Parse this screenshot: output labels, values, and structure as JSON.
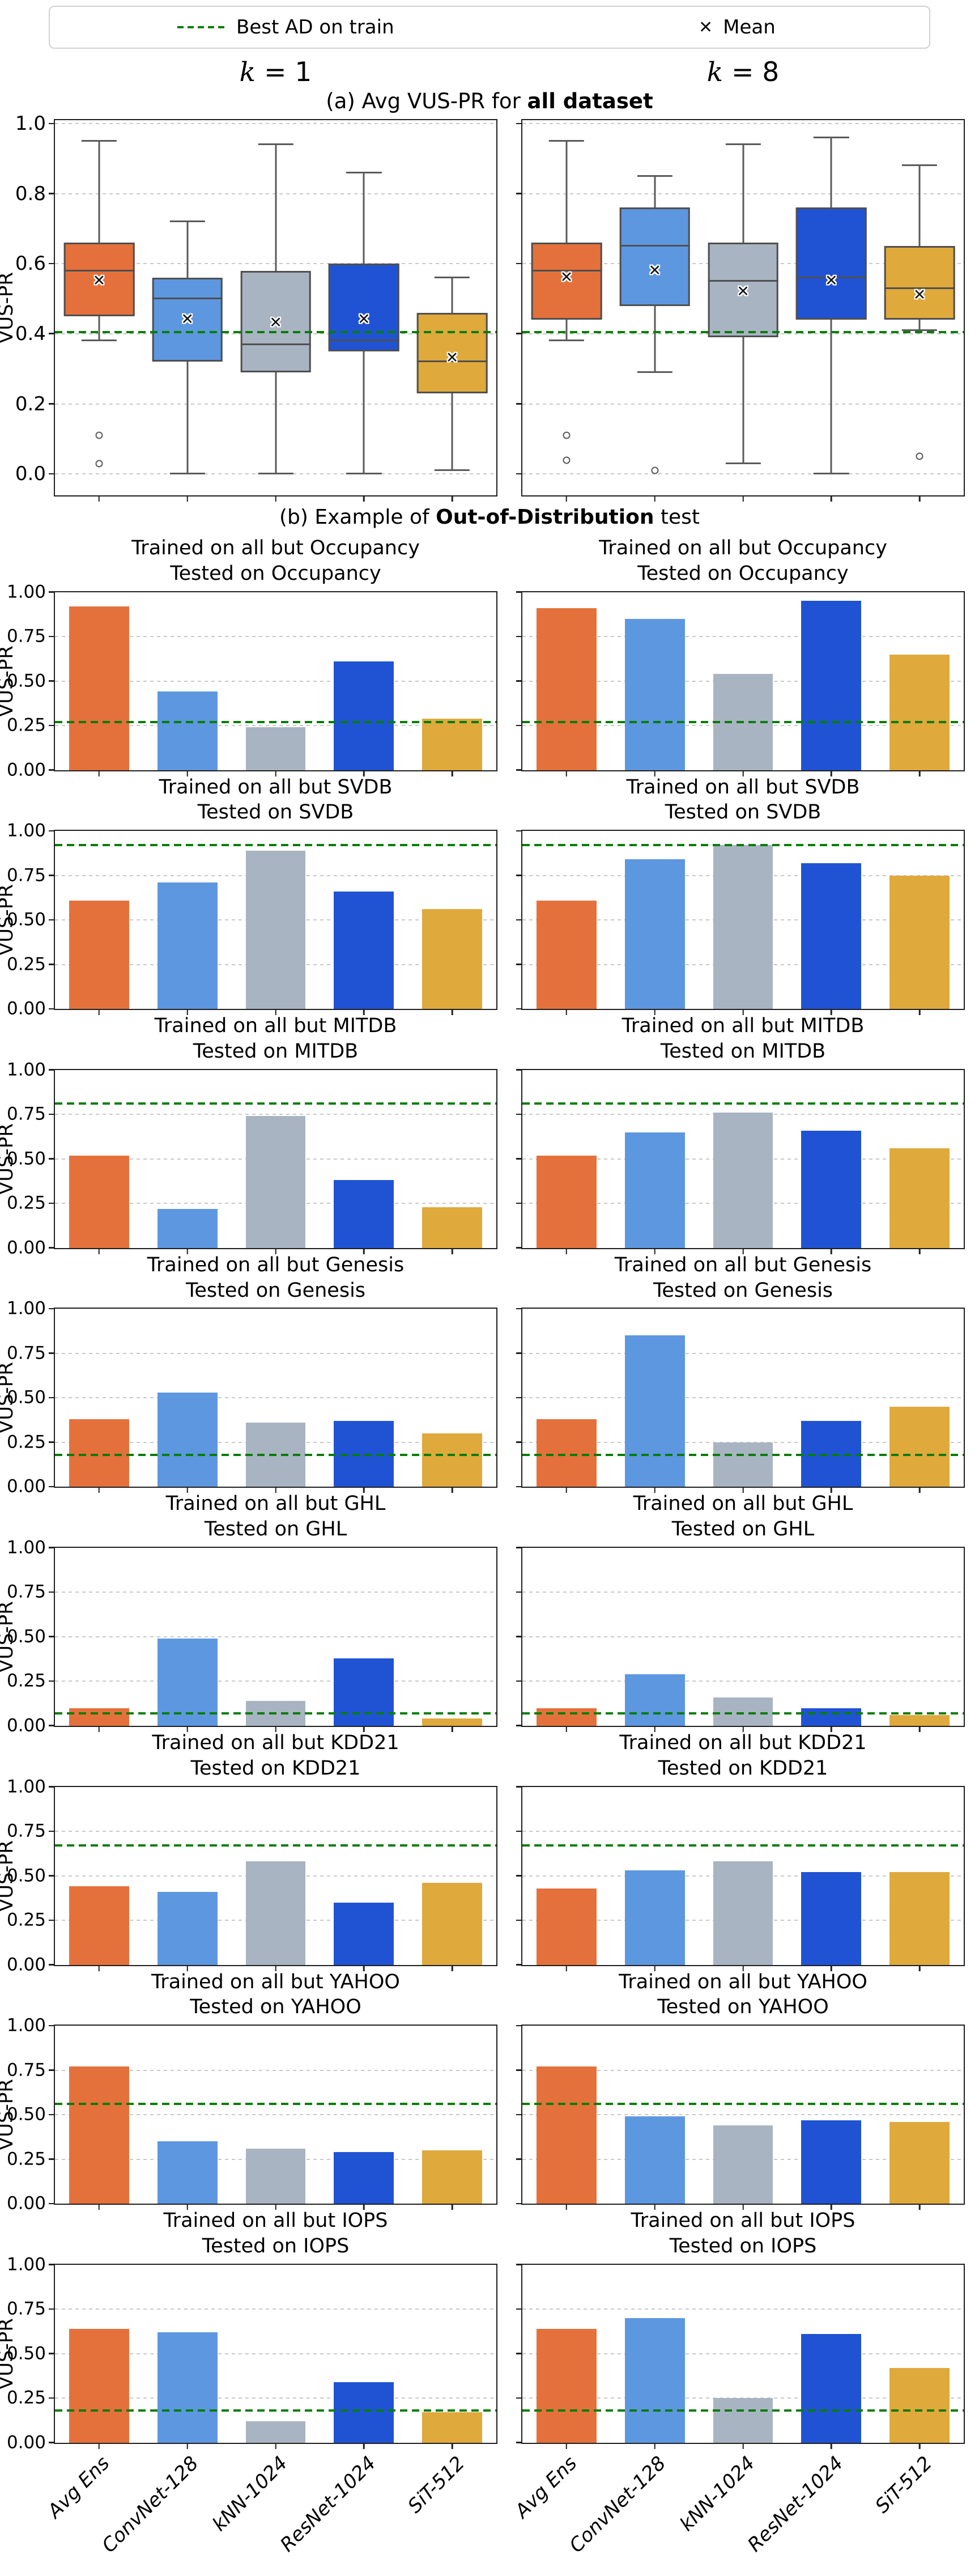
{
  "legend": {
    "best_ad_label": "Best AD on train",
    "mean_label": "Mean",
    "mean_glyph": "✕"
  },
  "headers": {
    "k_symbol": "k",
    "k1_label": " = 1",
    "k8_label": " = 8",
    "caption_a_plain": "(a) Avg VUS-PR for ",
    "caption_a_bold": "all dataset",
    "caption_b_plain": "(b) Example of ",
    "caption_b_bold": "Out-of-Distribution",
    "caption_b_suffix": " test"
  },
  "ylabel": "VUS-PR",
  "colors": {
    "series": [
      "#E4713B",
      "#5D97E0",
      "#A9B4C2",
      "#2053D4",
      "#DFA93C"
    ],
    "threshold_green": "#077d07",
    "gridline": "#c9c9c9",
    "box_edge": "#4f4f4f"
  },
  "chart_data": {
    "methods": [
      "Avg Ens",
      "ConvNet-128",
      "kNN-1024",
      "ResNet-1024",
      "SiT-512"
    ],
    "boxplot": {
      "type": "box",
      "title_left": "k = 1",
      "title_right": "k = 8",
      "ylabel": "VUS-PR",
      "ylim": [
        0,
        1
      ],
      "yticks": [
        "1.0",
        "0.8",
        "0.6",
        "0.4",
        "0.2",
        "0.0"
      ],
      "ytick_values": [
        1.0,
        0.8,
        0.6,
        0.4,
        0.2,
        0.0
      ],
      "threshold": 0.405,
      "k1": [
        {
          "whislo": 0.38,
          "q1": 0.45,
          "med": 0.58,
          "q3": 0.66,
          "whishi": 0.95,
          "mean": 0.55,
          "fliers": [
            0.11,
            0.03
          ]
        },
        {
          "whislo": 0.0,
          "q1": 0.32,
          "med": 0.5,
          "q3": 0.56,
          "whishi": 0.72,
          "mean": 0.44,
          "fliers": []
        },
        {
          "whislo": 0.0,
          "q1": 0.29,
          "med": 0.37,
          "q3": 0.58,
          "whishi": 0.94,
          "mean": 0.43,
          "fliers": []
        },
        {
          "whislo": 0.0,
          "q1": 0.35,
          "med": 0.38,
          "q3": 0.6,
          "whishi": 0.86,
          "mean": 0.44,
          "fliers": []
        },
        {
          "whislo": 0.01,
          "q1": 0.23,
          "med": 0.32,
          "q3": 0.46,
          "whishi": 0.56,
          "mean": 0.33,
          "fliers": []
        }
      ],
      "k8": [
        {
          "whislo": 0.38,
          "q1": 0.44,
          "med": 0.58,
          "q3": 0.66,
          "whishi": 0.95,
          "mean": 0.56,
          "fliers": [
            0.11,
            0.04
          ]
        },
        {
          "whislo": 0.29,
          "q1": 0.48,
          "med": 0.65,
          "q3": 0.76,
          "whishi": 0.85,
          "mean": 0.58,
          "fliers": [
            0.01
          ]
        },
        {
          "whislo": 0.03,
          "q1": 0.39,
          "med": 0.55,
          "q3": 0.66,
          "whishi": 0.94,
          "mean": 0.52,
          "fliers": []
        },
        {
          "whislo": 0.0,
          "q1": 0.44,
          "med": 0.56,
          "q3": 0.76,
          "whishi": 0.96,
          "mean": 0.55,
          "fliers": []
        },
        {
          "whislo": 0.41,
          "q1": 0.44,
          "med": 0.53,
          "q3": 0.65,
          "whishi": 0.88,
          "mean": 0.51,
          "fliers": [
            0.05
          ]
        }
      ]
    },
    "bar_yticks": [
      "1.00",
      "0.75",
      "0.50",
      "0.25",
      "0.00"
    ],
    "bar_ytick_values": [
      1.0,
      0.75,
      0.5,
      0.25,
      0.0
    ],
    "ood_rows": [
      {
        "dataset": "Occupancy",
        "title_line1": "Trained on all but Occupancy",
        "title_line2": "Tested on Occupancy",
        "type": "bar",
        "threshold": 0.27,
        "k1": [
          0.92,
          0.44,
          0.24,
          0.61,
          0.29
        ],
        "k8": [
          0.91,
          0.85,
          0.54,
          0.95,
          0.65
        ]
      },
      {
        "dataset": "SVDB",
        "title_line1": "Trained on all but SVDB",
        "title_line2": "Tested on SVDB",
        "type": "bar",
        "threshold": 0.92,
        "k1": [
          0.61,
          0.71,
          0.89,
          0.66,
          0.56
        ],
        "k8": [
          0.61,
          0.84,
          0.92,
          0.82,
          0.75
        ]
      },
      {
        "dataset": "MITDB",
        "title_line1": "Trained on all but MITDB",
        "title_line2": "Tested on MITDB",
        "type": "bar",
        "threshold": 0.81,
        "k1": [
          0.52,
          0.22,
          0.74,
          0.38,
          0.23
        ],
        "k8": [
          0.52,
          0.65,
          0.76,
          0.66,
          0.56
        ]
      },
      {
        "dataset": "Genesis",
        "title_line1": "Trained on all but Genesis",
        "title_line2": "Tested on Genesis",
        "type": "bar",
        "threshold": 0.18,
        "k1": [
          0.38,
          0.53,
          0.36,
          0.37,
          0.3
        ],
        "k8": [
          0.38,
          0.85,
          0.25,
          0.37,
          0.45
        ]
      },
      {
        "dataset": "GHL",
        "title_line1": "Trained on all but GHL",
        "title_line2": "Tested on GHL",
        "type": "bar",
        "threshold": 0.07,
        "k1": [
          0.1,
          0.49,
          0.14,
          0.38,
          0.04
        ],
        "k8": [
          0.1,
          0.29,
          0.16,
          0.1,
          0.06
        ]
      },
      {
        "dataset": "KDD21",
        "title_line1": "Trained on all but KDD21",
        "title_line2": "Tested on KDD21",
        "type": "bar",
        "threshold": 0.67,
        "k1": [
          0.44,
          0.41,
          0.58,
          0.35,
          0.46
        ],
        "k8": [
          0.43,
          0.53,
          0.58,
          0.52,
          0.52
        ]
      },
      {
        "dataset": "YAHOO",
        "title_line1": "Trained on all but YAHOO",
        "title_line2": "Tested on YAHOO",
        "type": "bar",
        "threshold": 0.56,
        "k1": [
          0.77,
          0.35,
          0.31,
          0.29,
          0.3
        ],
        "k8": [
          0.77,
          0.49,
          0.44,
          0.47,
          0.46
        ]
      },
      {
        "dataset": "IOPS",
        "title_line1": "Trained on all but IOPS",
        "title_line2": "Tested on IOPS",
        "type": "bar",
        "threshold": 0.18,
        "k1": [
          0.64,
          0.62,
          0.12,
          0.34,
          0.17
        ],
        "k8": [
          0.64,
          0.7,
          0.25,
          0.61,
          0.42
        ]
      }
    ]
  }
}
